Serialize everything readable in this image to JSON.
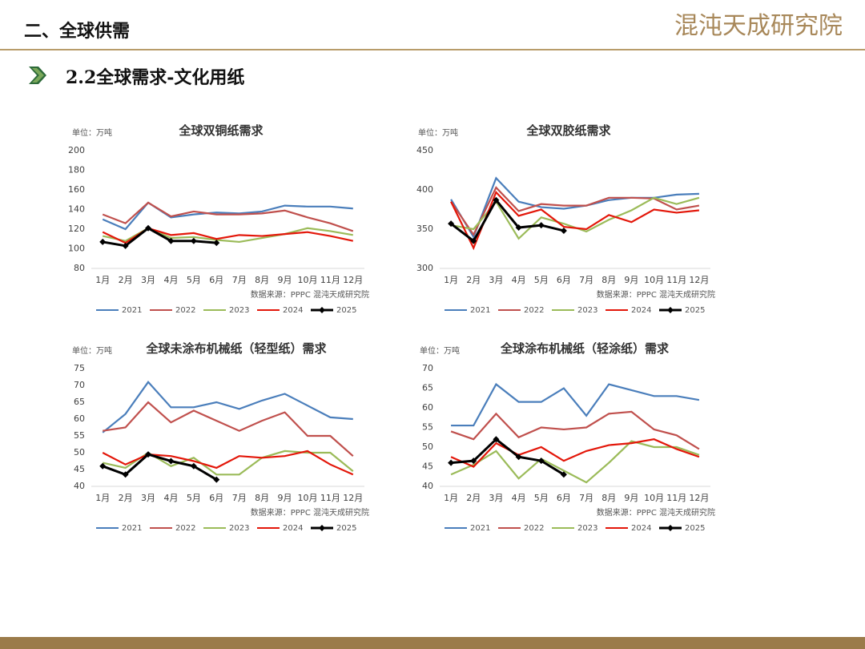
{
  "header": {
    "section": "二、全球供需",
    "logo": "混沌天成研究院",
    "subtitle": "2.2全球需求-文化用纸"
  },
  "chart_data": [
    {
      "type": "line",
      "title": "全球双铜纸需求",
      "unit": "单位：万吨",
      "source": "数据来源：PPPC  混沌天成研究院",
      "categories": [
        "1月",
        "2月",
        "3月",
        "4月",
        "5月",
        "6月",
        "7月",
        "8月",
        "9月",
        "10月",
        "11月",
        "12月"
      ],
      "ylim": [
        80,
        200
      ],
      "yticks": [
        80,
        100,
        120,
        140,
        160,
        180,
        200
      ],
      "grid": false,
      "series": [
        {
          "name": "2021",
          "color": "#4a7ebb",
          "values": [
            130,
            120,
            147,
            132,
            135,
            137,
            136,
            138,
            144,
            143,
            143,
            141
          ]
        },
        {
          "name": "2022",
          "color": "#c0504d",
          "values": [
            135,
            126,
            147,
            133,
            138,
            135,
            135,
            136,
            139,
            132,
            126,
            118
          ]
        },
        {
          "name": "2023",
          "color": "#9bbb59",
          "values": [
            113,
            108,
            121,
            111,
            112,
            109,
            107,
            111,
            115,
            121,
            118,
            114
          ]
        },
        {
          "name": "2024",
          "color": "#e3170a",
          "values": [
            117,
            106,
            121,
            114,
            116,
            110,
            114,
            113,
            115,
            117,
            113,
            108
          ]
        },
        {
          "name": "2025",
          "color": "#000000",
          "values": [
            107,
            103,
            121,
            108,
            108,
            106,
            null,
            null,
            null,
            null,
            null,
            null
          ]
        }
      ]
    },
    {
      "type": "line",
      "title": "全球双胶纸需求",
      "unit": "单位：万吨",
      "source": "数据来源：PPPC  混沌天成研究院",
      "categories": [
        "1月",
        "2月",
        "3月",
        "4月",
        "5月",
        "6月",
        "7月",
        "8月",
        "9月",
        "10月",
        "11月",
        "12月"
      ],
      "ylim": [
        300,
        450
      ],
      "yticks": [
        300,
        350,
        400,
        450
      ],
      "grid": false,
      "series": [
        {
          "name": "2021",
          "color": "#4a7ebb",
          "values": [
            388,
            340,
            415,
            385,
            378,
            376,
            380,
            387,
            390,
            390,
            394,
            395
          ]
        },
        {
          "name": "2022",
          "color": "#c0504d",
          "values": [
            385,
            343,
            403,
            373,
            382,
            380,
            380,
            390,
            390,
            389,
            375,
            380
          ]
        },
        {
          "name": "2023",
          "color": "#9bbb59",
          "values": [
            355,
            350,
            385,
            338,
            365,
            357,
            347,
            362,
            374,
            390,
            382,
            390
          ]
        },
        {
          "name": "2024",
          "color": "#e3170a",
          "values": [
            385,
            326,
            397,
            367,
            375,
            353,
            350,
            368,
            359,
            375,
            371,
            374
          ]
        },
        {
          "name": "2025",
          "color": "#000000",
          "values": [
            357,
            335,
            387,
            352,
            355,
            348,
            null,
            null,
            null,
            null,
            null,
            null
          ]
        }
      ]
    },
    {
      "type": "line",
      "title": "全球未涂布机械纸（轻型纸）需求",
      "unit": "单位：万吨",
      "source": "数据来源：PPPC  混沌天成研究院",
      "categories": [
        "1月",
        "2月",
        "3月",
        "4月",
        "5月",
        "6月",
        "7月",
        "8月",
        "9月",
        "10月",
        "11月",
        "12月"
      ],
      "ylim": [
        40,
        75
      ],
      "yticks": [
        40,
        45,
        50,
        55,
        60,
        65,
        70,
        75
      ],
      "grid": false,
      "series": [
        {
          "name": "2021",
          "color": "#4a7ebb",
          "values": [
            56,
            61.5,
            71,
            63.5,
            63.5,
            65,
            63,
            65.5,
            67.5,
            64,
            60.5,
            60
          ]
        },
        {
          "name": "2022",
          "color": "#c0504d",
          "values": [
            56.5,
            57.5,
            65,
            59,
            62.5,
            59.5,
            56.5,
            59.5,
            62,
            55,
            55,
            49
          ]
        },
        {
          "name": "2023",
          "color": "#9bbb59",
          "values": [
            47,
            45.5,
            50,
            46,
            48.5,
            43.5,
            43.5,
            48.5,
            50.5,
            50,
            50,
            44.5
          ]
        },
        {
          "name": "2024",
          "color": "#e3170a",
          "values": [
            50,
            46.5,
            49.5,
            49,
            47.5,
            45.5,
            49,
            48.5,
            49,
            50.5,
            46.5,
            43.5
          ]
        },
        {
          "name": "2025",
          "color": "#000000",
          "values": [
            46,
            43.5,
            49.5,
            47.5,
            46,
            42,
            null,
            null,
            null,
            null,
            null,
            null
          ]
        }
      ]
    },
    {
      "type": "line",
      "title": "全球涂布机械纸（轻涂纸）需求",
      "unit": "单位：万吨",
      "source": "数据来源：PPPC  混沌天成研究院",
      "categories": [
        "1月",
        "2月",
        "3月",
        "4月",
        "5月",
        "6月",
        "7月",
        "8月",
        "9月",
        "10月",
        "11月",
        "12月"
      ],
      "ylim": [
        40,
        70
      ],
      "yticks": [
        40,
        45,
        50,
        55,
        60,
        65,
        70
      ],
      "grid": false,
      "series": [
        {
          "name": "2021",
          "color": "#4a7ebb",
          "values": [
            55.5,
            55.5,
            66,
            61.5,
            61.5,
            65,
            58,
            66,
            64.5,
            63,
            63,
            62
          ]
        },
        {
          "name": "2022",
          "color": "#c0504d",
          "values": [
            54,
            52,
            58.5,
            52.5,
            55,
            54.5,
            55,
            58.5,
            59,
            54.5,
            53,
            49.5
          ]
        },
        {
          "name": "2023",
          "color": "#9bbb59",
          "values": [
            43,
            45.5,
            49,
            42,
            47,
            44,
            41,
            46,
            51.5,
            50,
            50,
            48
          ]
        },
        {
          "name": "2024",
          "color": "#e3170a",
          "values": [
            47.5,
            45,
            51,
            48,
            50,
            46.5,
            49,
            50.5,
            51,
            52,
            49.5,
            47.5
          ]
        },
        {
          "name": "2025",
          "color": "#000000",
          "values": [
            46,
            46.5,
            52,
            47.5,
            46.5,
            43,
            null,
            null,
            null,
            null,
            null,
            null
          ]
        }
      ]
    }
  ]
}
